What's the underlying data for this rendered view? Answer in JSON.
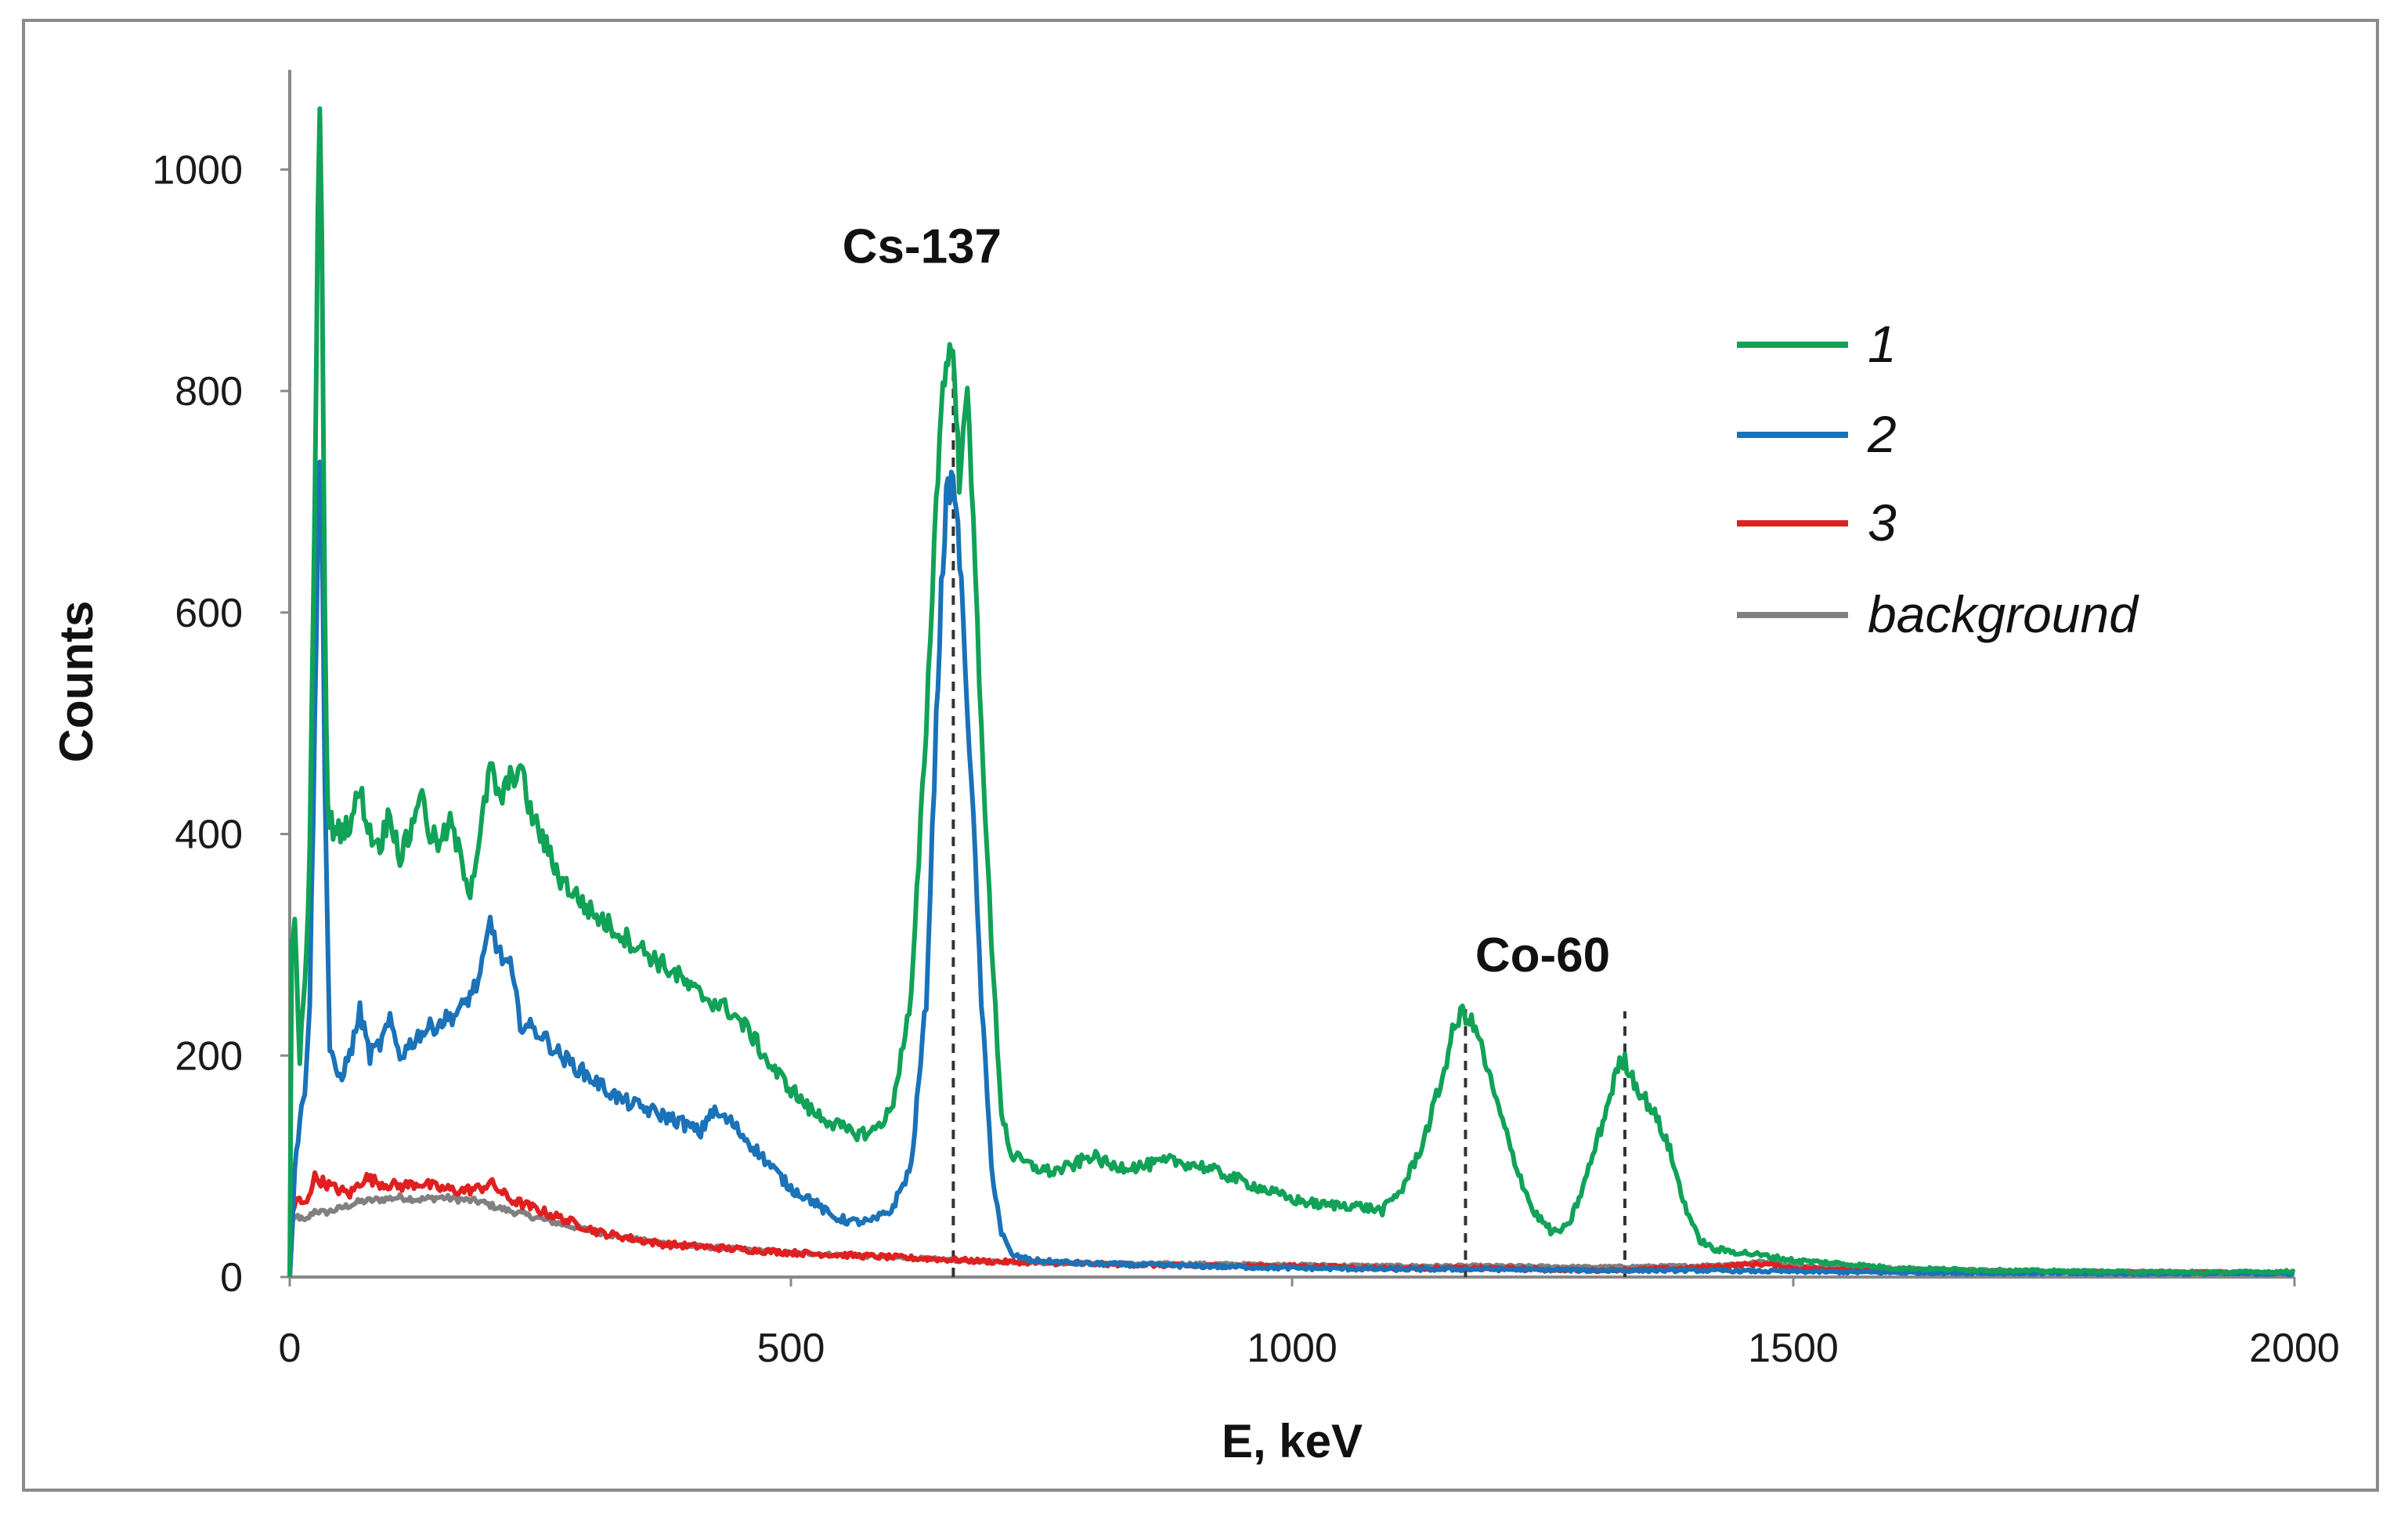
{
  "chart_data": {
    "type": "line",
    "title": "",
    "xlabel": "E, keV",
    "ylabel": "Counts",
    "xlim": [
      0,
      2000
    ],
    "ylim": [
      0,
      1100
    ],
    "xticks": [
      0,
      500,
      1000,
      1500,
      2000
    ],
    "yticks": [
      0,
      200,
      400,
      600,
      800,
      1000
    ],
    "grid": false,
    "legend_position": "top-right",
    "annotations": [
      {
        "text": "Cs-137",
        "x": 662,
        "y": 930,
        "dashed_line_x": 662,
        "dashed_line_top": 820
      },
      {
        "text": "Co-60",
        "x": 1250,
        "y": 290,
        "dashed_lines_x": [
          1173,
          1332
        ],
        "dashed_line_tops": [
          245,
          240
        ]
      }
    ],
    "series": [
      {
        "name": "1",
        "color": "#11a257",
        "points": [
          [
            0,
            0
          ],
          [
            2,
            300
          ],
          [
            5,
            320
          ],
          [
            10,
            200
          ],
          [
            15,
            260
          ],
          [
            20,
            380
          ],
          [
            25,
            700
          ],
          [
            28,
            950
          ],
          [
            30,
            1040
          ],
          [
            32,
            950
          ],
          [
            35,
            600
          ],
          [
            38,
            420
          ],
          [
            45,
            400
          ],
          [
            60,
            410
          ],
          [
            70,
            440
          ],
          [
            80,
            400
          ],
          [
            90,
            390
          ],
          [
            100,
            420
          ],
          [
            110,
            380
          ],
          [
            120,
            400
          ],
          [
            130,
            440
          ],
          [
            140,
            400
          ],
          [
            150,
            390
          ],
          [
            160,
            410
          ],
          [
            170,
            380
          ],
          [
            180,
            350
          ],
          [
            190,
            400
          ],
          [
            200,
            460
          ],
          [
            210,
            430
          ],
          [
            220,
            450
          ],
          [
            230,
            460
          ],
          [
            240,
            420
          ],
          [
            250,
            400
          ],
          [
            270,
            360
          ],
          [
            300,
            330
          ],
          [
            330,
            310
          ],
          [
            360,
            290
          ],
          [
            390,
            270
          ],
          [
            400,
            260
          ],
          [
            420,
            250
          ],
          [
            440,
            240
          ],
          [
            460,
            220
          ],
          [
            480,
            190
          ],
          [
            500,
            170
          ],
          [
            520,
            150
          ],
          [
            540,
            140
          ],
          [
            560,
            130
          ],
          [
            580,
            130
          ],
          [
            600,
            150
          ],
          [
            620,
            250
          ],
          [
            635,
            500
          ],
          [
            645,
            700
          ],
          [
            650,
            790
          ],
          [
            655,
            820
          ],
          [
            660,
            850
          ],
          [
            665,
            780
          ],
          [
            668,
            720
          ],
          [
            672,
            780
          ],
          [
            676,
            790
          ],
          [
            680,
            720
          ],
          [
            690,
            500
          ],
          [
            700,
            300
          ],
          [
            710,
            150
          ],
          [
            720,
            110
          ],
          [
            740,
            100
          ],
          [
            760,
            95
          ],
          [
            780,
            100
          ],
          [
            800,
            110
          ],
          [
            820,
            100
          ],
          [
            850,
            100
          ],
          [
            880,
            105
          ],
          [
            910,
            100
          ],
          [
            940,
            90
          ],
          [
            970,
            80
          ],
          [
            1000,
            70
          ],
          [
            1030,
            65
          ],
          [
            1060,
            65
          ],
          [
            1090,
            60
          ],
          [
            1110,
            80
          ],
          [
            1130,
            120
          ],
          [
            1150,
            180
          ],
          [
            1160,
            220
          ],
          [
            1170,
            240
          ],
          [
            1175,
            235
          ],
          [
            1185,
            220
          ],
          [
            1200,
            170
          ],
          [
            1220,
            110
          ],
          [
            1240,
            60
          ],
          [
            1260,
            40
          ],
          [
            1275,
            45
          ],
          [
            1290,
            80
          ],
          [
            1310,
            140
          ],
          [
            1325,
            190
          ],
          [
            1332,
            195
          ],
          [
            1345,
            170
          ],
          [
            1360,
            150
          ],
          [
            1375,
            120
          ],
          [
            1390,
            70
          ],
          [
            1405,
            35
          ],
          [
            1420,
            25
          ],
          [
            1450,
            22
          ],
          [
            1480,
            18
          ],
          [
            1500,
            15
          ],
          [
            1550,
            12
          ],
          [
            1600,
            8
          ],
          [
            1700,
            6
          ],
          [
            1800,
            5
          ],
          [
            1900,
            4
          ],
          [
            2000,
            5
          ]
        ]
      },
      {
        "name": "2",
        "color": "#1a72b8",
        "points": [
          [
            0,
            0
          ],
          [
            5,
            100
          ],
          [
            10,
            140
          ],
          [
            15,
            170
          ],
          [
            20,
            250
          ],
          [
            25,
            500
          ],
          [
            28,
            650
          ],
          [
            30,
            750
          ],
          [
            32,
            700
          ],
          [
            35,
            450
          ],
          [
            40,
            200
          ],
          [
            50,
            180
          ],
          [
            60,
            200
          ],
          [
            70,
            240
          ],
          [
            80,
            200
          ],
          [
            90,
            210
          ],
          [
            100,
            230
          ],
          [
            110,
            200
          ],
          [
            120,
            210
          ],
          [
            130,
            220
          ],
          [
            150,
            230
          ],
          [
            170,
            240
          ],
          [
            190,
            270
          ],
          [
            200,
            320
          ],
          [
            210,
            290
          ],
          [
            220,
            280
          ],
          [
            230,
            230
          ],
          [
            250,
            220
          ],
          [
            270,
            200
          ],
          [
            300,
            180
          ],
          [
            330,
            160
          ],
          [
            360,
            150
          ],
          [
            390,
            140
          ],
          [
            410,
            130
          ],
          [
            420,
            150
          ],
          [
            440,
            140
          ],
          [
            460,
            120
          ],
          [
            480,
            100
          ],
          [
            500,
            80
          ],
          [
            520,
            70
          ],
          [
            540,
            55
          ],
          [
            560,
            50
          ],
          [
            580,
            50
          ],
          [
            600,
            60
          ],
          [
            620,
            100
          ],
          [
            635,
            250
          ],
          [
            645,
            500
          ],
          [
            650,
            620
          ],
          [
            655,
            700
          ],
          [
            660,
            720
          ],
          [
            665,
            700
          ],
          [
            670,
            620
          ],
          [
            680,
            450
          ],
          [
            690,
            250
          ],
          [
            700,
            100
          ],
          [
            710,
            40
          ],
          [
            720,
            20
          ],
          [
            740,
            15
          ],
          [
            800,
            12
          ],
          [
            900,
            10
          ],
          [
            1000,
            8
          ],
          [
            1100,
            7
          ],
          [
            1200,
            7
          ],
          [
            1300,
            6
          ],
          [
            1400,
            6
          ],
          [
            1500,
            5
          ],
          [
            1600,
            4
          ],
          [
            1800,
            3
          ],
          [
            2000,
            3
          ]
        ]
      },
      {
        "name": "3",
        "color": "#e02020",
        "points": [
          [
            0,
            0
          ],
          [
            3,
            60
          ],
          [
            8,
            70
          ],
          [
            15,
            65
          ],
          [
            25,
            90
          ],
          [
            35,
            85
          ],
          [
            45,
            80
          ],
          [
            60,
            75
          ],
          [
            75,
            90
          ],
          [
            90,
            85
          ],
          [
            110,
            82
          ],
          [
            130,
            85
          ],
          [
            150,
            80
          ],
          [
            170,
            78
          ],
          [
            190,
            80
          ],
          [
            200,
            85
          ],
          [
            220,
            70
          ],
          [
            250,
            60
          ],
          [
            280,
            50
          ],
          [
            310,
            40
          ],
          [
            340,
            35
          ],
          [
            370,
            30
          ],
          [
            400,
            28
          ],
          [
            450,
            25
          ],
          [
            500,
            22
          ],
          [
            550,
            20
          ],
          [
            600,
            18
          ],
          [
            650,
            16
          ],
          [
            700,
            14
          ],
          [
            800,
            12
          ],
          [
            900,
            10
          ],
          [
            1000,
            10
          ],
          [
            1100,
            8
          ],
          [
            1200,
            8
          ],
          [
            1300,
            6
          ],
          [
            1400,
            8
          ],
          [
            1430,
            10
          ],
          [
            1470,
            12
          ],
          [
            1500,
            8
          ],
          [
            1600,
            6
          ],
          [
            1700,
            5
          ],
          [
            1800,
            4
          ],
          [
            2000,
            4
          ]
        ]
      },
      {
        "name": "background",
        "color": "#808080",
        "points": [
          [
            0,
            0
          ],
          [
            3,
            50
          ],
          [
            8,
            55
          ],
          [
            15,
            50
          ],
          [
            25,
            60
          ],
          [
            35,
            58
          ],
          [
            50,
            62
          ],
          [
            70,
            68
          ],
          [
            90,
            70
          ],
          [
            110,
            72
          ],
          [
            130,
            70
          ],
          [
            150,
            72
          ],
          [
            170,
            70
          ],
          [
            190,
            68
          ],
          [
            210,
            62
          ],
          [
            240,
            55
          ],
          [
            270,
            48
          ],
          [
            300,
            42
          ],
          [
            330,
            36
          ],
          [
            360,
            32
          ],
          [
            400,
            28
          ],
          [
            450,
            25
          ],
          [
            500,
            22
          ],
          [
            550,
            20
          ],
          [
            600,
            18
          ],
          [
            650,
            16
          ],
          [
            700,
            14
          ],
          [
            800,
            12
          ],
          [
            900,
            12
          ],
          [
            1000,
            11
          ],
          [
            1100,
            10
          ],
          [
            1200,
            10
          ],
          [
            1300,
            9
          ],
          [
            1400,
            10
          ],
          [
            1450,
            12
          ],
          [
            1470,
            14
          ],
          [
            1500,
            10
          ],
          [
            1600,
            8
          ],
          [
            1700,
            6
          ],
          [
            1800,
            5
          ],
          [
            1900,
            5
          ],
          [
            2000,
            4
          ]
        ]
      }
    ]
  }
}
